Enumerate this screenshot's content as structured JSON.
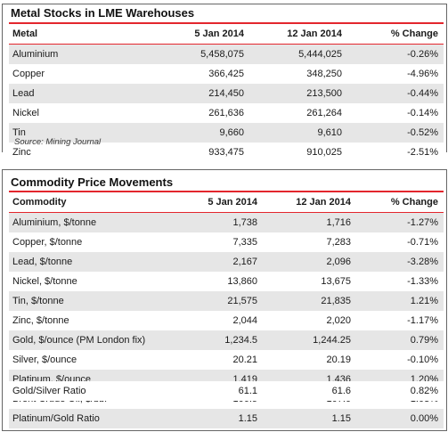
{
  "section1": {
    "title": "Metal Stocks in LME Warehouses",
    "headers": [
      "Metal",
      "5 Jan 2014",
      "12 Jan 2014",
      "% Change"
    ],
    "rows": [
      [
        "Aluminium",
        "5,458,075",
        "5,444,025",
        "-0.26%"
      ],
      [
        "Copper",
        "366,425",
        "348,250",
        "-4.96%"
      ],
      [
        "Lead",
        "214,450",
        "213,500",
        "-0.44%"
      ],
      [
        "Nickel",
        "261,636",
        "261,264",
        "-0.14%"
      ],
      [
        "Tin",
        "9,660",
        "9,610",
        "-0.52%"
      ],
      [
        "Zinc",
        "933,475",
        "910,025",
        "-2.51%"
      ]
    ],
    "source": "Source:  Mining Journal"
  },
  "section2": {
    "title": "Commodity Price Movements",
    "headers": [
      "Commodity",
      "5 Jan 2014",
      "12 Jan 2014",
      "% Change"
    ],
    "rows": [
      [
        "Aluminium, $/tonne",
        "1,738",
        "1,716",
        "-1.27%"
      ],
      [
        "Copper, $/tonne",
        "7,335",
        "7,283",
        "-0.71%"
      ],
      [
        "Lead, $/tonne",
        "2,167",
        "2,096",
        "-3.28%"
      ],
      [
        "Nickel, $/tonne",
        "13,860",
        "13,675",
        "-1.33%"
      ],
      [
        "Tin, $/tonne",
        "21,575",
        "21,835",
        "1.21%"
      ],
      [
        "Zinc, $/tonne",
        "2,044",
        "2,020",
        "-1.17%"
      ],
      [
        "Gold, $/ounce (PM London fix)",
        "1,234.5",
        "1,244.25",
        "0.79%"
      ],
      [
        "Silver, $/ounce",
        "20.21",
        "20.19",
        "-0.10%"
      ],
      [
        "Platinum, $/ounce",
        "1,419",
        "1,436",
        "1.20%"
      ],
      [
        "Brent Crude Oil, $/bbl",
        "106.5",
        "107.6",
        "1.03%"
      ],
      [
        "Platinum/Gold Ratio",
        "1.15",
        "1.15",
        "0.00%"
      ]
    ],
    "ratio_row": [
      "Gold/Silver Ratio",
      "61.1",
      "61.6",
      "0.82%"
    ]
  }
}
